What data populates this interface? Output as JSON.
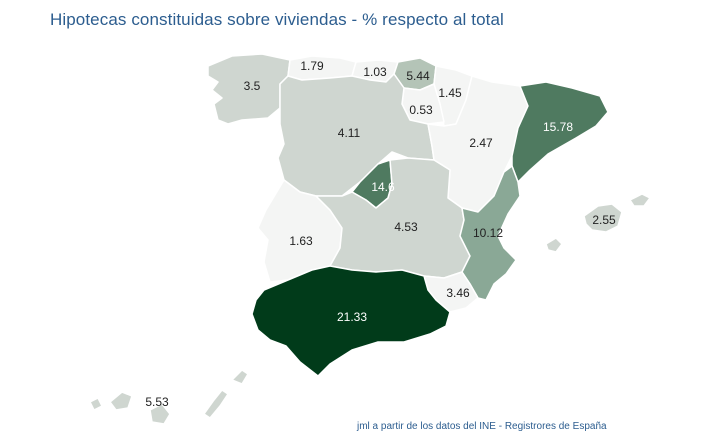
{
  "title": "Hipotecas constituidas sobre viviendas - % respecto al total",
  "credit": "jml a partir de los datos del INE - Registrores de España",
  "colors": {
    "v_lowest": "#f4f5f4",
    "v_low": "#cfd6d0",
    "v_mid": "#b4c4b7",
    "v_midhigh": "#8aa896",
    "v_high": "#4f7a60",
    "v_highest": "#013b1a",
    "title": "#2c5d8f"
  },
  "regions": [
    {
      "name": "Galicia",
      "value": "3.5"
    },
    {
      "name": "Asturias",
      "value": "1.79"
    },
    {
      "name": "Cantabria",
      "value": "1.03"
    },
    {
      "name": "País Vasco",
      "value": "5.44"
    },
    {
      "name": "Navarra",
      "value": "1.45"
    },
    {
      "name": "La Rioja",
      "value": "0.53"
    },
    {
      "name": "Castilla y León",
      "value": "4.11"
    },
    {
      "name": "Aragón",
      "value": "2.47"
    },
    {
      "name": "Cataluña",
      "value": "15.78"
    },
    {
      "name": "Madrid",
      "value": "14.6"
    },
    {
      "name": "Extremadura",
      "value": "1.63"
    },
    {
      "name": "Castilla-La Mancha",
      "value": "4.53"
    },
    {
      "name": "Comunidad Valenciana",
      "value": "10.12"
    },
    {
      "name": "Murcia",
      "value": "3.46"
    },
    {
      "name": "Andalucía",
      "value": "21.33"
    },
    {
      "name": "Baleares",
      "value": "2.55"
    },
    {
      "name": "Canarias",
      "value": "5.53"
    }
  ]
}
